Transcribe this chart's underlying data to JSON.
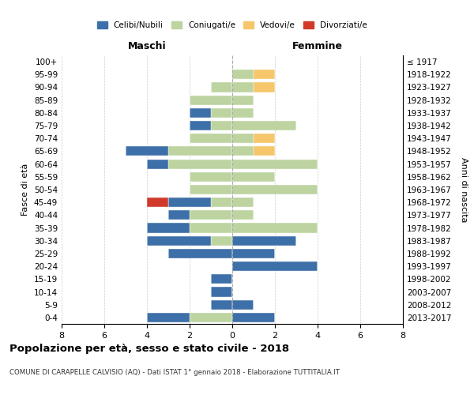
{
  "age_groups": [
    "0-4",
    "5-9",
    "10-14",
    "15-19",
    "20-24",
    "25-29",
    "30-34",
    "35-39",
    "40-44",
    "45-49",
    "50-54",
    "55-59",
    "60-64",
    "65-69",
    "70-74",
    "75-79",
    "80-84",
    "85-89",
    "90-94",
    "95-99",
    "100+"
  ],
  "birth_years": [
    "2013-2017",
    "2008-2012",
    "2003-2007",
    "1998-2002",
    "1993-1997",
    "1988-1992",
    "1983-1987",
    "1978-1982",
    "1973-1977",
    "1968-1972",
    "1963-1967",
    "1958-1962",
    "1953-1957",
    "1948-1952",
    "1943-1947",
    "1938-1942",
    "1933-1937",
    "1928-1932",
    "1923-1927",
    "1918-1922",
    "≤ 1917"
  ],
  "males": {
    "celibi": [
      2,
      1,
      1,
      1,
      0,
      3,
      3,
      2,
      1,
      2,
      0,
      0,
      1,
      2,
      0,
      1,
      1,
      0,
      0,
      0,
      0
    ],
    "coniugati": [
      2,
      0,
      0,
      0,
      0,
      0,
      1,
      2,
      2,
      1,
      2,
      2,
      3,
      3,
      2,
      1,
      1,
      2,
      1,
      0,
      0
    ],
    "vedovi": [
      0,
      0,
      0,
      0,
      0,
      0,
      0,
      0,
      0,
      0,
      0,
      0,
      0,
      0,
      0,
      0,
      0,
      0,
      0,
      0,
      0
    ],
    "divorziati": [
      0,
      0,
      0,
      0,
      0,
      0,
      0,
      0,
      0,
      1,
      0,
      0,
      0,
      0,
      0,
      0,
      0,
      0,
      0,
      0,
      0
    ]
  },
  "females": {
    "nubili": [
      2,
      1,
      0,
      0,
      4,
      2,
      3,
      0,
      0,
      0,
      0,
      0,
      0,
      0,
      0,
      0,
      0,
      0,
      0,
      0,
      0
    ],
    "coniugate": [
      0,
      0,
      0,
      0,
      0,
      0,
      0,
      4,
      1,
      1,
      4,
      2,
      4,
      1,
      1,
      3,
      1,
      1,
      1,
      1,
      0
    ],
    "vedove": [
      0,
      0,
      0,
      0,
      0,
      0,
      0,
      0,
      0,
      0,
      0,
      0,
      0,
      1,
      1,
      0,
      0,
      0,
      1,
      1,
      0
    ],
    "divorziate": [
      0,
      0,
      0,
      0,
      0,
      0,
      0,
      0,
      0,
      0,
      0,
      0,
      0,
      0,
      0,
      0,
      0,
      0,
      0,
      0,
      0
    ]
  },
  "color_celibi": "#3d6fa8",
  "color_coniugati": "#bdd4a0",
  "color_vedovi": "#f5c76a",
  "color_divorziati": "#d13a2a",
  "xlim": 8,
  "title": "Popolazione per età, sesso e stato civile - 2018",
  "subtitle": "COMUNE DI CARAPELLE CALVISIO (AQ) - Dati ISTAT 1° gennaio 2018 - Elaborazione TUTTITALIA.IT",
  "ylabel_left": "Fasce di età",
  "ylabel_right": "Anni di nascita",
  "label_maschi": "Maschi",
  "label_femmine": "Femmine",
  "legend_celibi": "Celibi/Nubili",
  "legend_coniugati": "Coniugati/e",
  "legend_vedovi": "Vedovi/e",
  "legend_divorziati": "Divorziati/e",
  "background_color": "#ffffff",
  "grid_color": "#cccccc"
}
